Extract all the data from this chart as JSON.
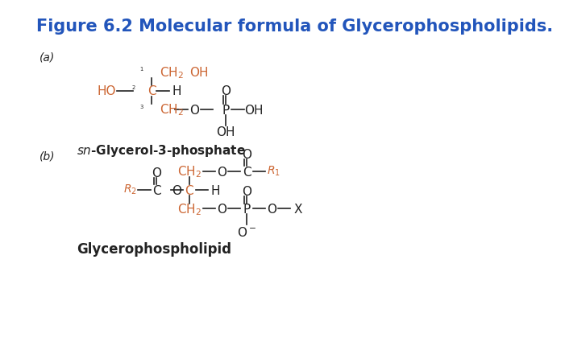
{
  "title": "Figure 6.2 Molecular formula of Glycerophospholipids.",
  "title_color": "#2255bb",
  "title_fontsize": 15,
  "bg_color": "#ffffff",
  "label_a": "(a)",
  "label_b": "(b)",
  "orange_color": "#cc6633",
  "black_color": "#222222",
  "fs": 11,
  "fs_small": 8,
  "lw": 1.2
}
